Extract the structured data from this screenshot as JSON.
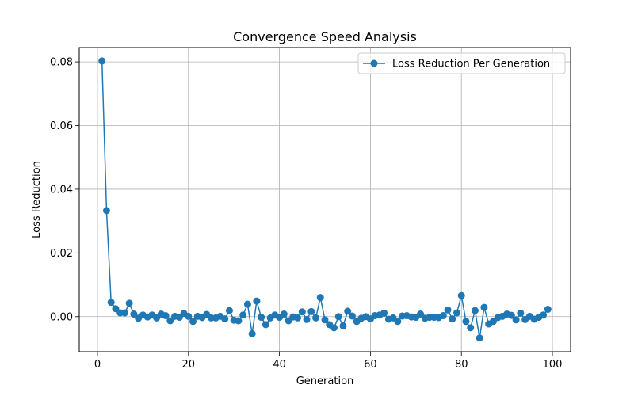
{
  "chart_data": {
    "type": "line",
    "title": "Convergence Speed Analysis",
    "xlabel": "Generation",
    "ylabel": "Loss Reduction",
    "xlim": [
      -4,
      104
    ],
    "ylim": [
      -0.011,
      0.0845
    ],
    "xticks": [
      0,
      20,
      40,
      60,
      80,
      100
    ],
    "yticks": [
      0.0,
      0.02,
      0.04,
      0.06,
      0.08
    ],
    "ytick_labels": [
      "0.00",
      "0.02",
      "0.04",
      "0.06",
      "0.08"
    ],
    "grid": true,
    "legend_position": "top-right",
    "series_color": "#1f77b4",
    "series": [
      {
        "name": "Loss Reduction Per Generation",
        "x": [
          1,
          2,
          3,
          4,
          5,
          6,
          7,
          8,
          9,
          10,
          11,
          12,
          13,
          14,
          15,
          16,
          17,
          18,
          19,
          20,
          21,
          22,
          23,
          24,
          25,
          26,
          27,
          28,
          29,
          30,
          31,
          32,
          33,
          34,
          35,
          36,
          37,
          38,
          39,
          40,
          41,
          42,
          43,
          44,
          45,
          46,
          47,
          48,
          49,
          50,
          51,
          52,
          53,
          54,
          55,
          56,
          57,
          58,
          59,
          60,
          61,
          62,
          63,
          64,
          65,
          66,
          67,
          68,
          69,
          70,
          71,
          72,
          73,
          74,
          75,
          76,
          77,
          78,
          79,
          80,
          81,
          82,
          83,
          84,
          85,
          86,
          87,
          88,
          89,
          90,
          91,
          92,
          93,
          94,
          95,
          96,
          97,
          98,
          99
        ],
        "y": [
          0.0803,
          0.0333,
          0.0045,
          0.0025,
          0.0012,
          0.0012,
          0.0042,
          0.0008,
          -0.0005,
          0.0005,
          -0.0001,
          0.0005,
          -0.0004,
          0.0008,
          0.0003,
          -0.0013,
          0.0001,
          -0.0002,
          0.001,
          0.0001,
          -0.0015,
          0.0001,
          -0.0003,
          0.0007,
          -0.0004,
          -0.0004,
          0.0001,
          -0.0007,
          0.0019,
          -0.0011,
          -0.0013,
          0.0005,
          0.0039,
          -0.0054,
          0.0049,
          -0.0002,
          -0.0025,
          -0.0004,
          0.0005,
          -0.0002,
          0.0008,
          -0.0013,
          -0.0001,
          -0.0004,
          0.0015,
          -0.0009,
          0.0016,
          -0.0004,
          0.006,
          -0.001,
          -0.0025,
          -0.0035,
          0.0,
          -0.0029,
          0.0017,
          0.0002,
          -0.0015,
          -0.0005,
          0.0,
          -0.0007,
          0.0003,
          0.0005,
          0.0011,
          -0.0008,
          -0.0004,
          -0.0015,
          0.0002,
          0.0003,
          -0.0001,
          -0.0002,
          0.0008,
          -0.0005,
          -0.0002,
          -0.0002,
          -0.0003,
          0.0003,
          0.0021,
          -0.0007,
          0.0012,
          0.0066,
          -0.0015,
          -0.0035,
          0.0019,
          -0.0067,
          0.0029,
          -0.0023,
          -0.0015,
          -0.0003,
          0.0001,
          0.0008,
          0.0004,
          -0.001,
          0.0011,
          -0.0009,
          0.0001,
          -0.0008,
          -0.0002,
          0.0005,
          0.0023
        ]
      }
    ]
  }
}
